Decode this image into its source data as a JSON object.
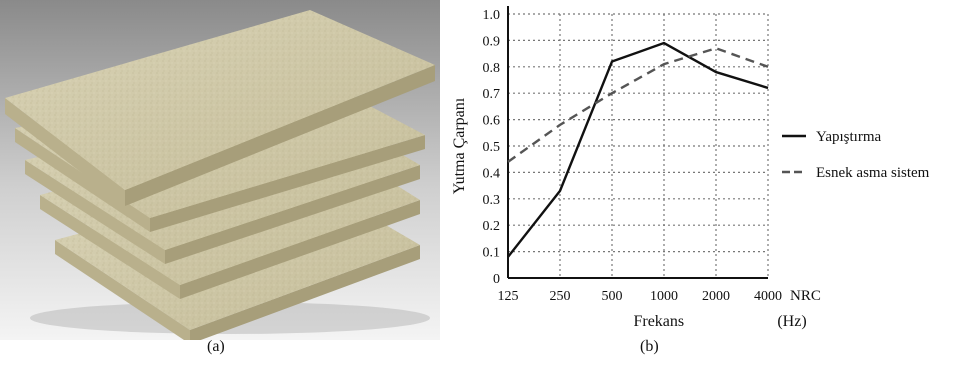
{
  "captions": {
    "a": "(a)",
    "b": "(b)"
  },
  "photo": {
    "subject": "stack-of-acoustic-boards",
    "board_color": "#cfc8a8"
  },
  "chart_data": {
    "type": "line",
    "x": [
      "125",
      "250",
      "500",
      "1000",
      "2000",
      "4000"
    ],
    "x_extra_label": "NRC",
    "xlabel": "Frekans",
    "xlabel_unit": "(Hz)",
    "ylabel": "Yutma Çarpanı",
    "ylim": [
      0,
      1.0
    ],
    "yticks": [
      "0",
      "0.1",
      "0.2",
      "0.3",
      "0.4",
      "0.5",
      "0.6",
      "0.7",
      "0.8",
      "0.9",
      "1.0"
    ],
    "grid": true,
    "legend_position": "right",
    "series": [
      {
        "name": "Yapıştırma",
        "style": "solid",
        "color": "#111111",
        "values": [
          0.08,
          0.33,
          0.82,
          0.89,
          0.78,
          0.72
        ]
      },
      {
        "name": "Esnek asma sistem",
        "style": "dashed",
        "color": "#555555",
        "values": [
          0.44,
          0.58,
          0.7,
          0.81,
          0.87,
          0.8
        ]
      }
    ]
  }
}
